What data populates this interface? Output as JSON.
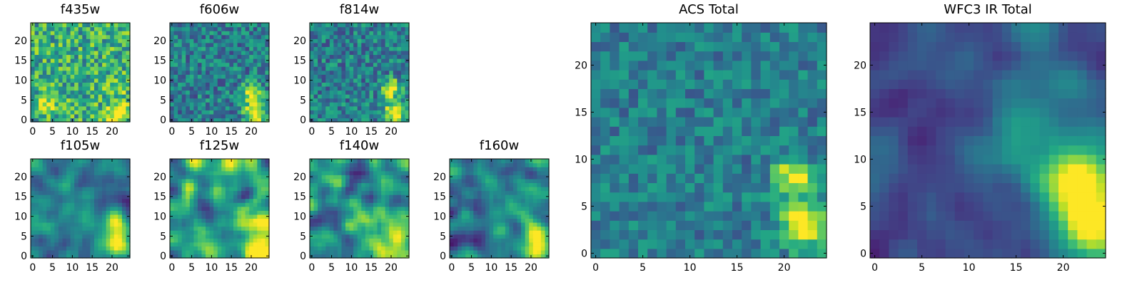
{
  "figure": {
    "colormap": "viridis",
    "background": "#ffffff"
  },
  "chart_data": [
    {
      "type": "heatmap",
      "title": "f435w",
      "grid": false,
      "colormap": "viridis",
      "xlim": [
        -0.5,
        24.5
      ],
      "ylim": [
        -0.5,
        24.5
      ],
      "xticks": [
        0,
        5,
        10,
        15,
        20
      ],
      "yticks": [
        0,
        5,
        10,
        15,
        20
      ],
      "noise": 0.55,
      "blobs": [
        [
          21,
          2,
          1.8,
          0.5
        ],
        [
          21,
          8,
          1.6,
          0.2
        ],
        [
          4,
          4,
          2.0,
          0.25
        ]
      ],
      "base": 0.62
    },
    {
      "type": "heatmap",
      "title": "f606w",
      "grid": false,
      "colormap": "viridis",
      "xlim": [
        -0.5,
        24.5
      ],
      "ylim": [
        -0.5,
        24.5
      ],
      "xticks": [
        0,
        5,
        10,
        15,
        20
      ],
      "yticks": [
        0,
        5,
        10,
        15,
        20
      ],
      "noise": 0.45,
      "blobs": [
        [
          21,
          2,
          1.8,
          0.75
        ],
        [
          20,
          7,
          1.6,
          0.6
        ]
      ],
      "base": 0.42
    },
    {
      "type": "heatmap",
      "title": "f814w",
      "grid": false,
      "colormap": "viridis",
      "xlim": [
        -0.5,
        24.5
      ],
      "ylim": [
        -0.5,
        24.5
      ],
      "xticks": [
        0,
        5,
        10,
        15,
        20
      ],
      "yticks": [
        0,
        5,
        10,
        15,
        20
      ],
      "noise": 0.45,
      "blobs": [
        [
          21,
          2,
          1.8,
          0.75
        ],
        [
          20,
          8,
          1.6,
          0.65
        ]
      ],
      "base": 0.42
    },
    {
      "type": "heatmap",
      "title": "f105w",
      "grid": false,
      "colormap": "viridis",
      "xlim": [
        -0.5,
        24.5
      ],
      "ylim": [
        -0.5,
        24.5
      ],
      "xticks": [
        0,
        5,
        10,
        15,
        20
      ],
      "yticks": [
        0,
        5,
        10,
        15,
        20
      ],
      "noise": 0.3,
      "smooth": true,
      "blobs": [
        [
          21,
          3,
          2.5,
          0.6
        ],
        [
          21,
          9,
          2.0,
          0.45
        ],
        [
          10,
          10,
          4,
          0.15
        ]
      ],
      "base": 0.42
    },
    {
      "type": "heatmap",
      "title": "f125w",
      "grid": false,
      "colormap": "viridis",
      "xlim": [
        -0.5,
        24.5
      ],
      "ylim": [
        -0.5,
        24.5
      ],
      "xticks": [
        0,
        5,
        10,
        15,
        20
      ],
      "yticks": [
        0,
        5,
        10,
        15,
        20
      ],
      "noise": 0.45,
      "smooth": true,
      "blobs": [
        [
          22,
          3,
          2.5,
          0.55
        ],
        [
          21,
          9,
          2.0,
          0.45
        ]
      ],
      "base": 0.5
    },
    {
      "type": "heatmap",
      "title": "f140w",
      "grid": false,
      "colormap": "viridis",
      "xlim": [
        -0.5,
        24.5
      ],
      "ylim": [
        -0.5,
        24.5
      ],
      "xticks": [
        0,
        5,
        10,
        15,
        20
      ],
      "yticks": [
        0,
        5,
        10,
        15,
        20
      ],
      "noise": 0.45,
      "smooth": true,
      "blobs": [
        [
          21,
          4,
          3,
          0.5
        ],
        [
          5,
          18,
          3,
          0.2
        ]
      ],
      "base": 0.52
    },
    {
      "type": "heatmap",
      "title": "f160w",
      "grid": false,
      "colormap": "viridis",
      "xlim": [
        -0.5,
        24.5
      ],
      "ylim": [
        -0.5,
        24.5
      ],
      "xticks": [
        0,
        5,
        10,
        15,
        20
      ],
      "yticks": [
        0,
        5,
        10,
        15,
        20
      ],
      "noise": 0.35,
      "smooth": true,
      "blobs": [
        [
          21,
          3,
          2.2,
          0.6
        ],
        [
          21,
          8,
          1.8,
          0.5
        ]
      ],
      "base": 0.45
    },
    {
      "type": "heatmap",
      "title": "ACS Total",
      "grid": false,
      "colormap": "viridis",
      "xlim": [
        -0.5,
        24.5
      ],
      "ylim": [
        -0.5,
        24.5
      ],
      "xticks": [
        0,
        5,
        10,
        15,
        20
      ],
      "yticks": [
        0,
        5,
        10,
        15,
        20
      ],
      "noise": 0.32,
      "blobs": [
        [
          22,
          3,
          1.6,
          0.75
        ],
        [
          21,
          8,
          1.4,
          0.6
        ]
      ],
      "base": 0.42
    },
    {
      "type": "heatmap",
      "title": "WFC3 IR Total",
      "grid": false,
      "colormap": "viridis",
      "xlim": [
        -0.5,
        24.5
      ],
      "ylim": [
        -0.5,
        24.5
      ],
      "xticks": [
        0,
        5,
        10,
        15,
        20
      ],
      "yticks": [
        0,
        5,
        10,
        15,
        20
      ],
      "noise": 0.18,
      "smooth": true,
      "blobs": [
        [
          21,
          8,
          2.6,
          0.75
        ],
        [
          23,
          3,
          2.4,
          0.8
        ],
        [
          17,
          12,
          4,
          0.15
        ]
      ],
      "base": 0.25
    }
  ]
}
